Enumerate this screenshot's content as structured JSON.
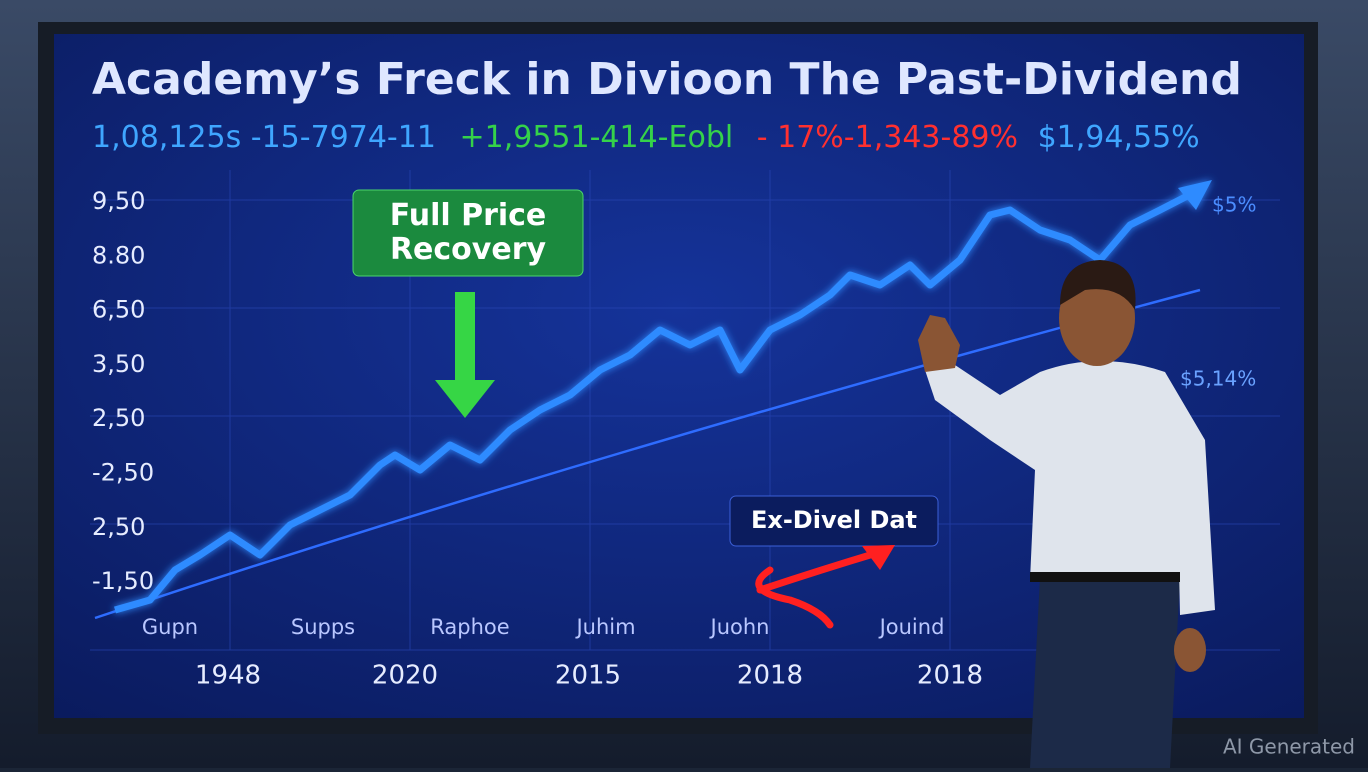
{
  "screen": {
    "title": "Academy’s Freck in Divioon The Past-Dividend",
    "ticker": [
      "1,08,125s -15-7974-11",
      "+1,9551-414-Eobl",
      "- 17%-1,343-89%",
      "$1,94,55%"
    ],
    "y_labels": [
      "9,50",
      "8.80",
      "6,50",
      "3,50",
      "2,50",
      "-2,50",
      "2,50",
      "-1,50"
    ],
    "x_labels": [
      "Gupn",
      "Supps",
      "Raphoe",
      "Juhim",
      "Juohn",
      "Jouind"
    ],
    "year_labels": [
      "1948",
      "2020",
      "2015",
      "2018",
      "2018"
    ],
    "callouts": {
      "recovery": "Full Price Recovery",
      "ex_dividend": "Ex-Divel Dat",
      "top_right": "$5%",
      "mid_right": "$5,14%"
    }
  },
  "watermark": "AI Generated"
}
